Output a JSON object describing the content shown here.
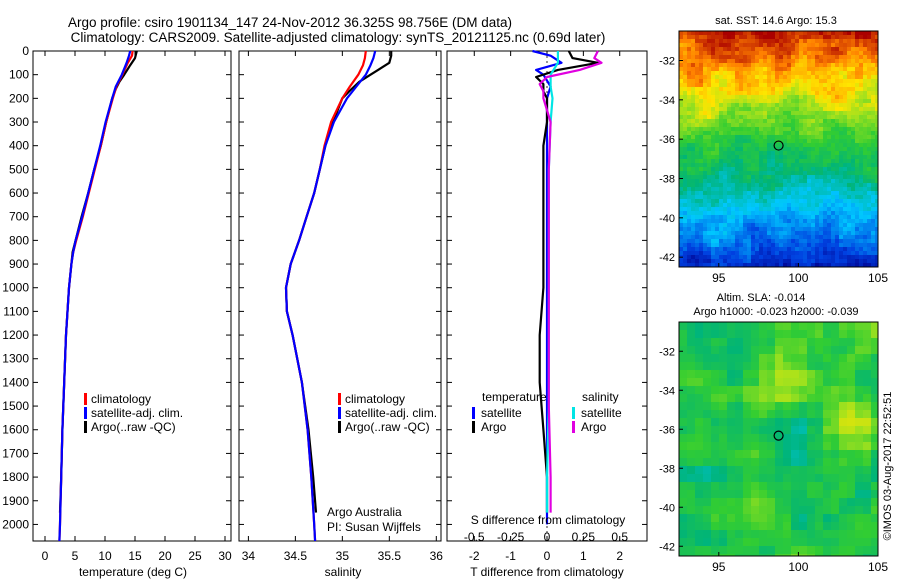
{
  "header": {
    "title_line1": "Argo profile: csiro 1901134_147 24-Nov-2012 36.325S 98.756E (DM data)",
    "title_line2": "Climatology: CARS2009. Satellite-adjusted climatology: synTS_20121125.nc (0.69d later)"
  },
  "colors": {
    "climatology": "#ff0000",
    "satellite": "#0000ff",
    "argo": "#000000",
    "sat_salinity": "#00e5e5",
    "argo_salinity": "#e000e0"
  },
  "depth_axis": {
    "ticks": [
      0,
      100,
      200,
      300,
      400,
      500,
      600,
      700,
      800,
      900,
      1000,
      1100,
      1200,
      1300,
      1400,
      1500,
      1600,
      1700,
      1800,
      1900,
      2000
    ],
    "range": [
      0,
      2070
    ]
  },
  "chart_data": [
    {
      "type": "line",
      "xlabel": "temperature (deg C)",
      "xticks": [
        0,
        5,
        10,
        15,
        20,
        25,
        30
      ],
      "xlim": [
        -2,
        31
      ],
      "legend": {
        "placement": "lower-left",
        "items": [
          {
            "label": "climatology",
            "color": "#ff0000"
          },
          {
            "label": "satellite-adj. clim.",
            "color": "#0000ff"
          },
          {
            "label": "Argo(..raw -QC)",
            "color": "#000000"
          }
        ]
      },
      "series": [
        {
          "color": "#ff0000",
          "depth": [
            0,
            20,
            50,
            100,
            150,
            200,
            300,
            400,
            500,
            600,
            700,
            800,
            850,
            900,
            1000,
            1200,
            1400,
            1600,
            1800,
            2000,
            2070
          ],
          "values": [
            14.6,
            14.5,
            13.8,
            12.9,
            11.9,
            11.3,
            10.2,
            9.3,
            8.3,
            7.3,
            6.3,
            5.2,
            4.7,
            4.4,
            4.0,
            3.5,
            3.2,
            2.9,
            2.7,
            2.5,
            2.4
          ]
        },
        {
          "color": "#0000ff",
          "depth": [
            0,
            20,
            50,
            100,
            150,
            200,
            300,
            400,
            500,
            600,
            700,
            800,
            850,
            900,
            1000,
            1200,
            1400,
            1600,
            1800,
            2000,
            2070
          ],
          "values": [
            14.2,
            14.0,
            13.6,
            12.8,
            11.8,
            11.2,
            10.1,
            9.2,
            8.2,
            7.2,
            6.2,
            5.1,
            4.7,
            4.4,
            4.0,
            3.5,
            3.2,
            2.9,
            2.7,
            2.5,
            2.4
          ]
        },
        {
          "color": "#000000",
          "depth": [
            0,
            10,
            30,
            60,
            100,
            130,
            160,
            200,
            300,
            400,
            500,
            600,
            700,
            800,
            850,
            900,
            1000,
            1200,
            1400,
            1600,
            1800,
            1950
          ],
          "values": [
            15.3,
            15.2,
            15.0,
            14.2,
            13.2,
            12.4,
            11.8,
            11.2,
            10.2,
            9.3,
            8.2,
            7.2,
            6.1,
            5.1,
            4.6,
            4.4,
            4.0,
            3.5,
            3.2,
            2.9,
            2.7,
            2.5
          ]
        }
      ]
    },
    {
      "type": "line",
      "xlabel": "salinity",
      "xticks": [
        34,
        34.5,
        35,
        35.5,
        36
      ],
      "xlim": [
        33.9,
        36.05
      ],
      "legend": {
        "placement": "lower-right",
        "items": [
          {
            "label": "climatology",
            "color": "#ff0000"
          },
          {
            "label": "satellite-adj. clim.",
            "color": "#0000ff"
          },
          {
            "label": "Argo(..raw -QC)",
            "color": "#000000"
          }
        ]
      },
      "annotation": [
        "Argo Australia",
        "PI: Susan Wijffels"
      ],
      "series": [
        {
          "color": "#ff0000",
          "depth": [
            0,
            30,
            60,
            100,
            150,
            200,
            300,
            400,
            500,
            600,
            700,
            800,
            900,
            1000,
            1100,
            1200,
            1400,
            1600,
            1800,
            2000,
            2070
          ],
          "values": [
            35.25,
            35.24,
            35.22,
            35.17,
            35.08,
            35.0,
            34.88,
            34.81,
            34.76,
            34.7,
            34.62,
            34.54,
            34.45,
            34.4,
            34.41,
            34.47,
            34.57,
            34.63,
            34.67,
            34.7,
            34.71
          ]
        },
        {
          "color": "#0000ff",
          "depth": [
            0,
            30,
            60,
            100,
            150,
            200,
            300,
            400,
            500,
            600,
            700,
            800,
            900,
            1000,
            1100,
            1200,
            1400,
            1600,
            1800,
            2000,
            2070
          ],
          "values": [
            35.35,
            35.33,
            35.3,
            35.25,
            35.15,
            35.05,
            34.91,
            34.82,
            34.76,
            34.7,
            34.62,
            34.54,
            34.45,
            34.4,
            34.41,
            34.47,
            34.57,
            34.63,
            34.67,
            34.7,
            34.71
          ]
        },
        {
          "color": "#000000",
          "depth": [
            0,
            20,
            50,
            80,
            100,
            130,
            160,
            200,
            300,
            400,
            500,
            600,
            700,
            800,
            900,
            1000,
            1100,
            1200,
            1400,
            1600,
            1800,
            1950
          ],
          "values": [
            35.52,
            35.52,
            35.5,
            35.38,
            35.3,
            35.18,
            35.1,
            35.0,
            34.9,
            34.82,
            34.76,
            34.7,
            34.62,
            34.54,
            34.45,
            34.4,
            34.41,
            34.47,
            34.57,
            34.64,
            34.69,
            34.72
          ]
        }
      ]
    },
    {
      "type": "line",
      "xlabel": "T difference from climatology",
      "xticks": [
        -2,
        -1,
        0,
        1,
        2
      ],
      "xlim": [
        -2.75,
        2.75
      ],
      "secondary_xlabel": "S difference from climatology",
      "secondary_xticks": [
        "-0.5",
        "-0.25",
        "0",
        "0.25",
        "0.5"
      ],
      "legend": {
        "placement": "lower",
        "groups": [
          {
            "heading": "temperature",
            "items": [
              {
                "label": "satellite",
                "color": "#0000ff"
              },
              {
                "label": "Argo",
                "color": "#000000"
              }
            ]
          },
          {
            "heading": "salinity",
            "items": [
              {
                "label": "satellite",
                "color": "#00e5e5"
              },
              {
                "label": "Argo",
                "color": "#e000e0"
              }
            ]
          }
        ]
      },
      "series": [
        {
          "name": "temperature satellite",
          "color": "#0000ff",
          "depth": [
            0,
            20,
            50,
            80,
            100,
            150,
            200,
            300,
            500,
            1000,
            1500,
            2000
          ],
          "values": [
            -0.4,
            0.1,
            0.4,
            -0.3,
            -0.1,
            0.1,
            0.0,
            0.0,
            0.0,
            0.0,
            0.0,
            0.0
          ]
        },
        {
          "name": "temperature Argo",
          "color": "#000000",
          "depth": [
            0,
            30,
            50,
            80,
            110,
            140,
            170,
            200,
            300,
            400,
            500,
            600,
            800,
            1000,
            1200,
            1400,
            1600,
            1800,
            1950
          ],
          "values": [
            0.6,
            0.7,
            1.4,
            0.3,
            -0.3,
            -0.1,
            -0.1,
            0.0,
            0.0,
            -0.1,
            -0.1,
            -0.1,
            -0.1,
            -0.1,
            -0.2,
            -0.2,
            -0.1,
            0.0,
            0.0
          ]
        },
        {
          "name": "salinity satellite",
          "color": "#00e5e5",
          "depth": [
            0,
            50,
            100,
            150,
            200,
            300,
            500,
            800,
            1000,
            1500,
            1800,
            1950
          ],
          "values": [
            0.3,
            0.3,
            0.1,
            0.1,
            0.15,
            0.1,
            0.05,
            0.05,
            0.05,
            0.05,
            0.0,
            0.0
          ]
        },
        {
          "name": "salinity Argo",
          "color": "#e000e0",
          "depth": [
            0,
            30,
            50,
            80,
            110,
            140,
            170,
            200,
            300,
            500,
            800,
            1000,
            1500,
            1800,
            1950
          ],
          "values": [
            1.4,
            1.3,
            1.5,
            0.9,
            0.0,
            -0.2,
            -0.1,
            -0.1,
            0.1,
            0.05,
            0.05,
            0.05,
            0.05,
            0.1,
            0.1
          ]
        }
      ]
    }
  ],
  "maps": [
    {
      "title": "sat. SST: 14.6 Argo: 15.3",
      "xticks": [
        95,
        100,
        105
      ],
      "yticks": [
        -32,
        -34,
        -36,
        -38,
        -40,
        -42
      ],
      "xlim": [
        92.5,
        105
      ],
      "ylim": [
        -42.5,
        -30.5
      ],
      "marker": {
        "lon": 98.756,
        "lat": -36.325
      },
      "field": "sst"
    },
    {
      "title_line1": "Altim. SLA: -0.014",
      "title_line2": "Argo h1000: -0.023 h2000: -0.039",
      "xticks": [
        95,
        100,
        105
      ],
      "yticks": [
        -32,
        -34,
        -36,
        -38,
        -40,
        -42
      ],
      "xlim": [
        92.5,
        105
      ],
      "ylim": [
        -42.5,
        -30.5
      ],
      "marker": {
        "lon": 98.756,
        "lat": -36.325
      },
      "field": "sla"
    }
  ],
  "side_stamp": "©IMOS 03-Aug-2017 22:52:51"
}
